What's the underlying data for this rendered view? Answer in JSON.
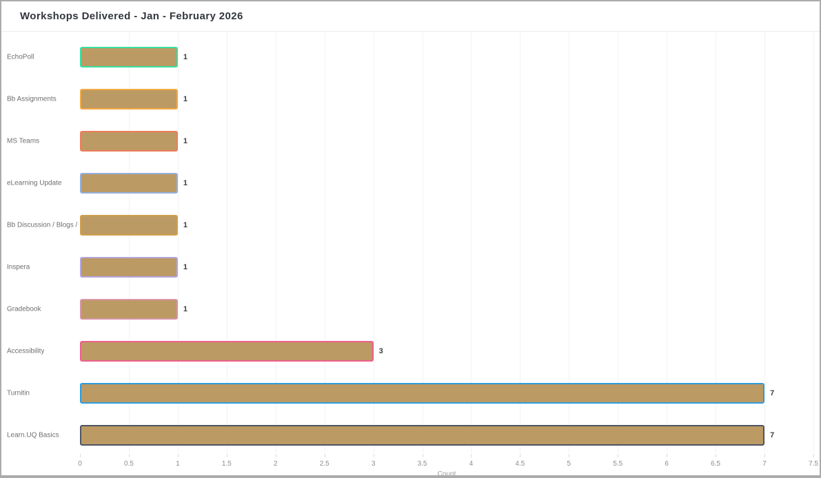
{
  "window": {
    "title": "Workshops Delivered - Jan - February 2026"
  },
  "chart_data": {
    "type": "bar",
    "orientation": "horizontal",
    "title": "Workshops Delivered - Jan - February 2026",
    "categories": [
      "EchoPoll",
      "Bb Assignments",
      "MS Teams",
      "eLearning Update",
      "Bb Discussion / Blogs /...",
      "Inspera",
      "Gradebook",
      "Accessibility",
      "Turnitin",
      "Learn.UQ Basics"
    ],
    "values": [
      1,
      1,
      1,
      1,
      1,
      1,
      1,
      3,
      7,
      7
    ],
    "value_labels": [
      "1",
      "1",
      "1",
      "1",
      "1",
      "1",
      "1",
      "3",
      "7",
      "7"
    ],
    "xlabel": "Count",
    "ylabel": "",
    "xlim": [
      0,
      7.5
    ],
    "x_ticks": [
      "0",
      "0.5",
      "1",
      "1.5",
      "2",
      "2.5",
      "3",
      "3.5",
      "4",
      "4.5",
      "5",
      "5.5",
      "6",
      "6.5",
      "7",
      "7.5"
    ],
    "grid": true,
    "legend": false,
    "colors": {
      "bar_fill": "#bc9a63",
      "bar_borders": [
        "#35e0a1",
        "#f2a944",
        "#ed7d5d",
        "#93afde",
        "#cfa14d",
        "#b4a6de",
        "#d795a8",
        "#ef5e8c",
        "#2d9cdb",
        "#4d5562"
      ],
      "gridline": "#f2f2f4",
      "value_text": "#3a3e45",
      "category_text": "#6e6e6e",
      "tick_text": "#8c8c8c"
    }
  }
}
